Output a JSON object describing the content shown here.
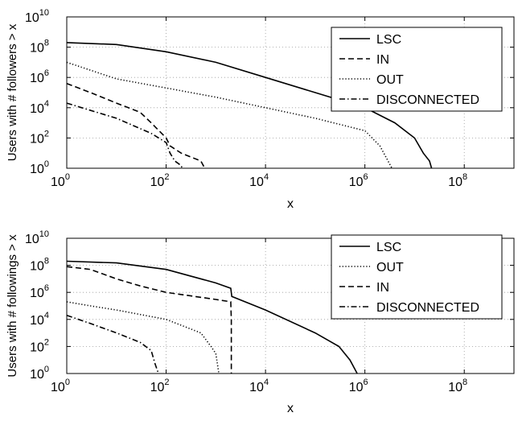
{
  "chart_data": [
    {
      "type": "line",
      "xscale": "log",
      "yscale": "log",
      "xlabel": "x",
      "ylabel": "Users with # followers > x",
      "xlim": [
        1,
        1000000000
      ],
      "ylim": [
        1,
        10000000000
      ],
      "grid": true,
      "legend_position": "top-right",
      "xticks": [
        {
          "value": 1,
          "base": "10",
          "exp": "0"
        },
        {
          "value": 100,
          "base": "10",
          "exp": "2"
        },
        {
          "value": 10000,
          "base": "10",
          "exp": "4"
        },
        {
          "value": 1000000,
          "base": "10",
          "exp": "6"
        },
        {
          "value": 100000000,
          "base": "10",
          "exp": "8"
        }
      ],
      "yticks": [
        {
          "value": 1,
          "base": "10",
          "exp": "0"
        },
        {
          "value": 100,
          "base": "10",
          "exp": "2"
        },
        {
          "value": 10000,
          "base": "10",
          "exp": "4"
        },
        {
          "value": 1000000,
          "base": "10",
          "exp": "6"
        },
        {
          "value": 100000000,
          "base": "10",
          "exp": "8"
        },
        {
          "value": 10000000000,
          "base": "10",
          "exp": "10"
        }
      ],
      "series": [
        {
          "name": "LSC",
          "style": "solid",
          "x": [
            1,
            10,
            100,
            1000,
            10000,
            100000,
            1000000,
            4000000,
            10000000,
            15000000,
            20000000,
            22000000
          ],
          "y": [
            200000000,
            150000000,
            50000000,
            10000000,
            1000000,
            100000,
            10000,
            1000,
            100,
            10,
            3,
            1
          ]
        },
        {
          "name": "IN",
          "style": "dashed",
          "x": [
            1,
            3,
            10,
            30,
            50,
            100,
            120,
            200,
            500,
            600
          ],
          "y": [
            400000,
            100000,
            20000,
            5000,
            1000,
            100,
            30,
            10,
            3,
            1
          ]
        },
        {
          "name": "OUT",
          "style": "dotted",
          "x": [
            1,
            3,
            10,
            100,
            1000,
            10000,
            100000,
            1000000,
            2000000,
            3500000
          ],
          "y": [
            10000000,
            3000000,
            800000,
            200000,
            50000,
            10000,
            2000,
            300,
            30,
            1
          ]
        },
        {
          "name": "DISCONNECTED",
          "style": "dashdot",
          "x": [
            1,
            2,
            10,
            50,
            100,
            120,
            150,
            200,
            210
          ],
          "y": [
            20000,
            10000,
            2000,
            200,
            50,
            10,
            3,
            1.5,
            1
          ]
        }
      ]
    },
    {
      "type": "line",
      "xscale": "log",
      "yscale": "log",
      "xlabel": "x",
      "ylabel": "Users with # followings > x",
      "xlim": [
        1,
        1000000000
      ],
      "ylim": [
        1,
        10000000000
      ],
      "grid": true,
      "legend_position": "top-right",
      "xticks": [
        {
          "value": 1,
          "base": "10",
          "exp": "0"
        },
        {
          "value": 100,
          "base": "10",
          "exp": "2"
        },
        {
          "value": 10000,
          "base": "10",
          "exp": "4"
        },
        {
          "value": 1000000,
          "base": "10",
          "exp": "6"
        },
        {
          "value": 100000000,
          "base": "10",
          "exp": "8"
        }
      ],
      "yticks": [
        {
          "value": 1,
          "base": "10",
          "exp": "0"
        },
        {
          "value": 100,
          "base": "10",
          "exp": "2"
        },
        {
          "value": 10000,
          "base": "10",
          "exp": "4"
        },
        {
          "value": 1000000,
          "base": "10",
          "exp": "6"
        },
        {
          "value": 100000000,
          "base": "10",
          "exp": "8"
        },
        {
          "value": 10000000000,
          "base": "10",
          "exp": "10"
        }
      ],
      "series": [
        {
          "name": "LSC",
          "style": "solid",
          "x": [
            1,
            10,
            100,
            1000,
            2000,
            2100,
            10000,
            100000,
            300000,
            500000,
            700000
          ],
          "y": [
            200000000,
            150000000,
            50000000,
            5000000,
            2000000,
            500000,
            50000,
            1000,
            100,
            10,
            1
          ]
        },
        {
          "name": "OUT",
          "style": "dotted",
          "x": [
            1,
            3,
            10,
            100,
            500,
            800,
            1000,
            1100,
            1150
          ],
          "y": [
            200000,
            100000,
            50000,
            10000,
            1000,
            100,
            30,
            3,
            1
          ]
        },
        {
          "name": "IN",
          "style": "dashed",
          "x": [
            1,
            3,
            10,
            30,
            100,
            1000,
            2000,
            2050,
            2050
          ],
          "y": [
            80000000,
            50000000,
            10000000,
            3000000,
            1000000,
            300000,
            200000,
            10000,
            1
          ]
        },
        {
          "name": "DISCONNECTED",
          "style": "dashdot",
          "x": [
            1,
            3,
            10,
            30,
            50,
            60,
            70
          ],
          "y": [
            20000,
            5000,
            1000,
            200,
            50,
            5,
            1
          ]
        }
      ]
    }
  ]
}
